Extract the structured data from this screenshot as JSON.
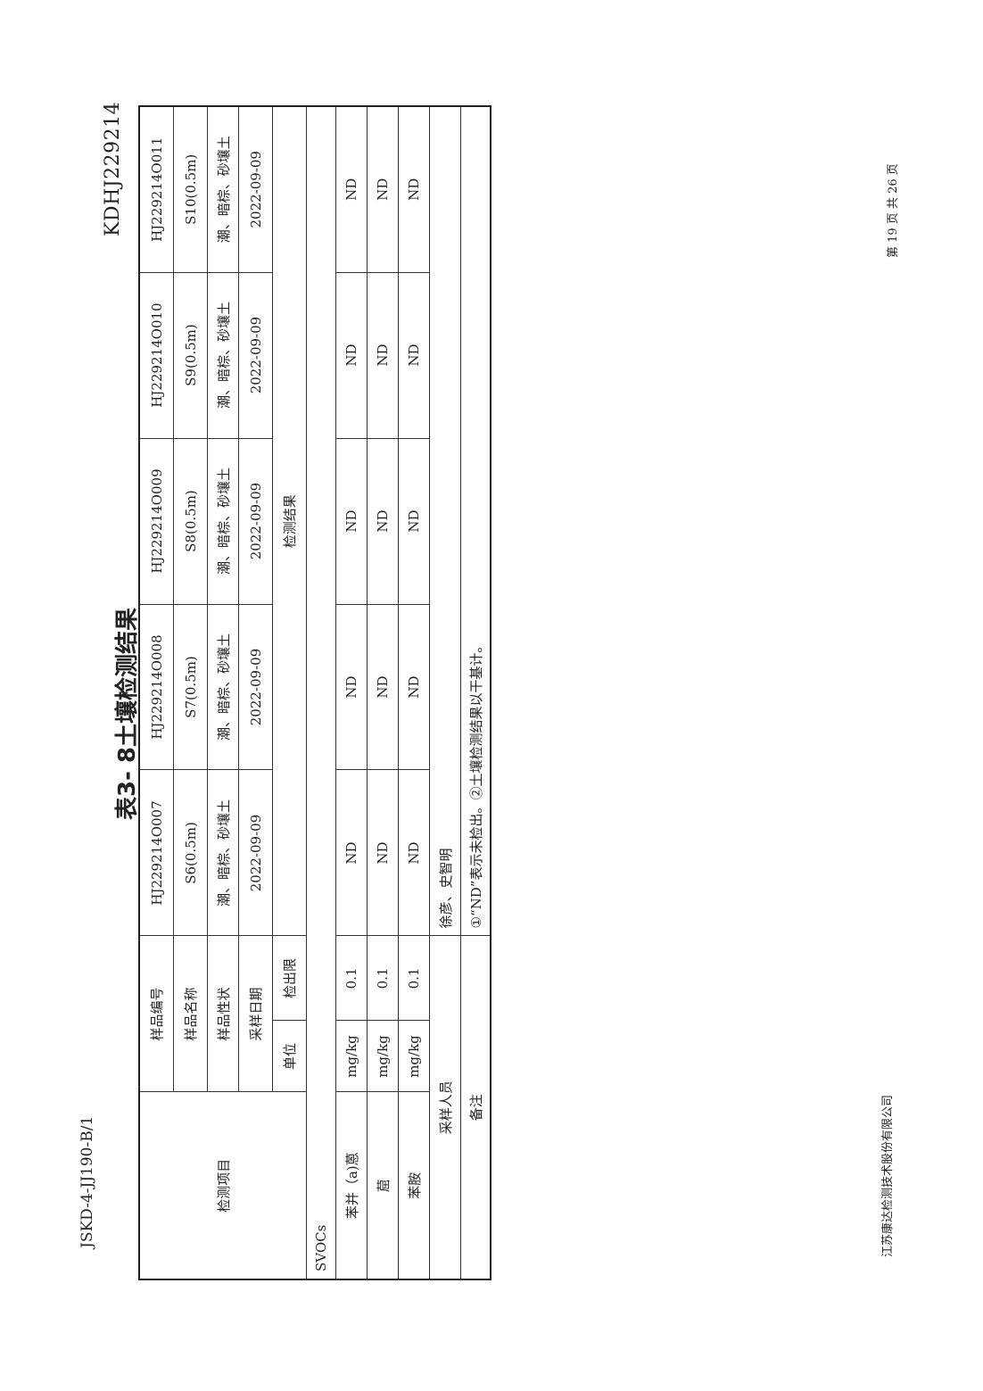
{
  "header": {
    "doc_code": "JSKD-4-JJ190-B/1",
    "report_no": "KDHJ229214"
  },
  "title": "表3- 8土壤检测结果",
  "table": {
    "item_header": "检测项目",
    "row_labels": {
      "sample_no": "样品编号",
      "sample_name": "样品名称",
      "sample_state": "样品性状",
      "sample_date": "采样日期",
      "unit": "单位",
      "limit": "检出限",
      "result": "检测结果"
    },
    "samples": [
      {
        "no": "HJ229214O007",
        "name": "S6(0.5m)",
        "state": "潮、暗棕、砂壤土",
        "date": "2022-09-09"
      },
      {
        "no": "HJ229214O008",
        "name": "S7(0.5m)",
        "state": "潮、暗棕、砂壤土",
        "date": "2022-09-09"
      },
      {
        "no": "HJ229214O009",
        "name": "S8(0.5m)",
        "state": "潮、暗棕、砂壤土",
        "date": "2022-09-09"
      },
      {
        "no": "HJ229214O010",
        "name": "S9(0.5m)",
        "state": "潮、暗棕、砂壤土",
        "date": "2022-09-09"
      },
      {
        "no": "HJ229214O011",
        "name": "S10(0.5m)",
        "state": "潮、暗棕、砂壤土",
        "date": "2022-09-09"
      }
    ],
    "group": "SVOCs",
    "rows": [
      {
        "item": "苯并（a)蒽",
        "unit": "mg/kg",
        "limit": "0.1",
        "values": [
          "ND",
          "ND",
          "ND",
          "ND",
          "ND"
        ]
      },
      {
        "item": "䓛",
        "unit": "mg/kg",
        "limit": "0.1",
        "values": [
          "ND",
          "ND",
          "ND",
          "ND",
          "ND"
        ]
      },
      {
        "item": "苯胺",
        "unit": "mg/kg",
        "limit": "0.1",
        "values": [
          "ND",
          "ND",
          "ND",
          "ND",
          "ND"
        ]
      }
    ],
    "sampler_label": "采样人员",
    "sampler": "徐彦、史智明",
    "remark_label": "备注",
    "remark": "①“ND”表示未检出。②土壤检测结果以干基计。"
  },
  "footer": {
    "company": "江苏康达检测技术股份有限公司",
    "page": "第 19 页 共 26 页"
  }
}
